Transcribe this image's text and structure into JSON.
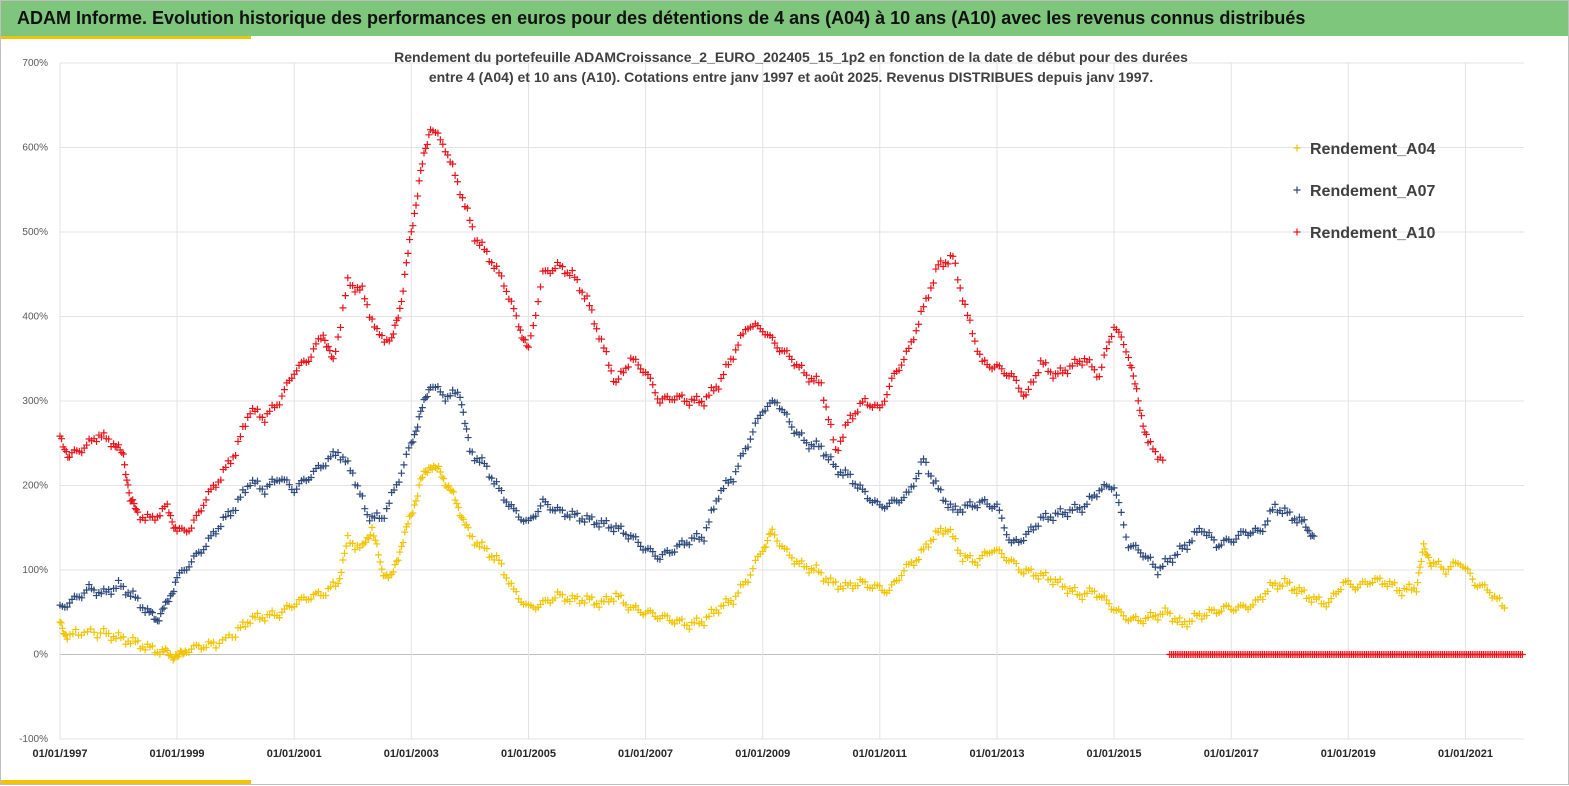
{
  "header": {
    "title": "ADAM Informe. Evolution historique des performances en euros pour des détentions de 4 ans (A04) à 10 ans (A10) avec les revenus connus distribués"
  },
  "chart_data": {
    "type": "scatter",
    "subtitle_lines": [
      "Rendement du portefeuille ADAMCroissance_2_EURO_202405_15_1p2  en fonction de la date de début pour des durées",
      "entre 4 (A04) et 10 ans (A10). Cotations entre janv 1997 et août 2025. Revenus DISTRIBUES depuis janv 1997."
    ],
    "xlabel": "",
    "ylabel": "",
    "x_domain": [
      "1997-01-01",
      "2022-01-01"
    ],
    "x_ticks": [
      "01/01/1997",
      "01/01/1999",
      "01/01/2001",
      "01/01/2003",
      "01/01/2005",
      "01/01/2007",
      "01/01/2009",
      "01/01/2011",
      "01/01/2013",
      "01/01/2015",
      "01/01/2017",
      "01/01/2019",
      "01/01/2021"
    ],
    "ylim": [
      -100,
      700
    ],
    "y_ticks": [
      "-100%",
      "0%",
      "100%",
      "200%",
      "300%",
      "400%",
      "500%",
      "600%",
      "700%"
    ],
    "grid": true,
    "legend_position": "top-right",
    "marker": "+",
    "series": [
      {
        "name": "Rendement_A04",
        "color": "#f2c300",
        "points": [
          [
            "1997-01-01",
            35
          ],
          [
            "1997-02-15",
            22
          ],
          [
            "1997-06-01",
            27
          ],
          [
            "1997-10-01",
            25
          ],
          [
            "1998-01-01",
            20
          ],
          [
            "1998-04-01",
            15
          ],
          [
            "1998-07-01",
            8
          ],
          [
            "1998-10-01",
            3
          ],
          [
            "1998-12-01",
            0
          ],
          [
            "1999-01-15",
            -3
          ],
          [
            "1999-03-01",
            5
          ],
          [
            "1999-06-01",
            10
          ],
          [
            "1999-09-01",
            12
          ],
          [
            "2000-01-01",
            25
          ],
          [
            "2000-04-01",
            42
          ],
          [
            "2000-07-01",
            45
          ],
          [
            "2000-10-01",
            48
          ],
          [
            "2001-01-01",
            60
          ],
          [
            "2001-04-01",
            68
          ],
          [
            "2001-07-01",
            72
          ],
          [
            "2001-10-01",
            85
          ],
          [
            "2001-12-01",
            135
          ],
          [
            "2002-03-01",
            125
          ],
          [
            "2002-05-01",
            150
          ],
          [
            "2002-07-01",
            100
          ],
          [
            "2002-09-01",
            90
          ],
          [
            "2002-11-01",
            130
          ],
          [
            "2003-01-01",
            165
          ],
          [
            "2003-03-01",
            205
          ],
          [
            "2003-05-01",
            225
          ],
          [
            "2003-07-01",
            215
          ],
          [
            "2003-09-01",
            195
          ],
          [
            "2003-11-01",
            170
          ],
          [
            "2004-01-01",
            140
          ],
          [
            "2004-04-01",
            125
          ],
          [
            "2004-07-01",
            110
          ],
          [
            "2004-10-01",
            75
          ],
          [
            "2005-01-01",
            55
          ],
          [
            "2005-04-01",
            60
          ],
          [
            "2005-07-01",
            70
          ],
          [
            "2005-10-01",
            65
          ],
          [
            "2006-01-01",
            65
          ],
          [
            "2006-04-01",
            60
          ],
          [
            "2006-07-01",
            70
          ],
          [
            "2006-10-01",
            55
          ],
          [
            "2007-01-01",
            50
          ],
          [
            "2007-04-01",
            45
          ],
          [
            "2007-07-01",
            40
          ],
          [
            "2007-10-01",
            35
          ],
          [
            "2008-01-01",
            40
          ],
          [
            "2008-04-01",
            55
          ],
          [
            "2008-07-01",
            65
          ],
          [
            "2008-10-01",
            90
          ],
          [
            "2009-01-01",
            125
          ],
          [
            "2009-03-01",
            145
          ],
          [
            "2009-06-01",
            120
          ],
          [
            "2009-09-01",
            105
          ],
          [
            "2009-12-01",
            100
          ],
          [
            "2010-03-01",
            85
          ],
          [
            "2010-06-01",
            80
          ],
          [
            "2010-09-01",
            85
          ],
          [
            "2010-12-01",
            80
          ],
          [
            "2011-03-01",
            75
          ],
          [
            "2011-06-01",
            100
          ],
          [
            "2011-09-01",
            115
          ],
          [
            "2011-12-01",
            140
          ],
          [
            "2012-03-01",
            150
          ],
          [
            "2012-06-01",
            115
          ],
          [
            "2012-09-01",
            110
          ],
          [
            "2012-12-01",
            125
          ],
          [
            "2013-03-01",
            115
          ],
          [
            "2013-06-01",
            100
          ],
          [
            "2013-09-01",
            95
          ],
          [
            "2013-12-01",
            90
          ],
          [
            "2014-03-01",
            80
          ],
          [
            "2014-06-01",
            70
          ],
          [
            "2014-09-01",
            75
          ],
          [
            "2014-12-01",
            60
          ],
          [
            "2015-03-01",
            45
          ],
          [
            "2015-06-01",
            40
          ],
          [
            "2015-09-01",
            45
          ],
          [
            "2015-12-01",
            50
          ],
          [
            "2016-03-01",
            35
          ],
          [
            "2016-06-01",
            45
          ],
          [
            "2016-09-01",
            50
          ],
          [
            "2016-12-01",
            55
          ],
          [
            "2017-03-01",
            55
          ],
          [
            "2017-06-01",
            60
          ],
          [
            "2017-09-01",
            80
          ],
          [
            "2017-12-01",
            85
          ],
          [
            "2018-03-01",
            75
          ],
          [
            "2018-06-01",
            65
          ],
          [
            "2018-09-01",
            60
          ],
          [
            "2018-12-01",
            85
          ],
          [
            "2019-03-01",
            80
          ],
          [
            "2019-06-01",
            88
          ],
          [
            "2019-09-01",
            85
          ],
          [
            "2019-12-01",
            75
          ],
          [
            "2020-03-01",
            80
          ],
          [
            "2020-04-15",
            125
          ],
          [
            "2020-06-01",
            110
          ],
          [
            "2020-09-01",
            100
          ],
          [
            "2020-12-01",
            110
          ],
          [
            "2021-03-01",
            85
          ],
          [
            "2021-06-01",
            75
          ],
          [
            "2021-09-01",
            55
          ]
        ]
      },
      {
        "name": "Rendement_A07",
        "color": "#2e4a7d",
        "points": [
          [
            "1997-01-01",
            55
          ],
          [
            "1997-04-01",
            65
          ],
          [
            "1997-07-01",
            78
          ],
          [
            "1997-10-01",
            72
          ],
          [
            "1998-01-01",
            82
          ],
          [
            "1998-04-01",
            70
          ],
          [
            "1998-07-01",
            50
          ],
          [
            "1998-09-01",
            42
          ],
          [
            "1998-11-01",
            60
          ],
          [
            "1999-01-01",
            90
          ],
          [
            "1999-04-01",
            110
          ],
          [
            "1999-07-01",
            130
          ],
          [
            "1999-10-01",
            155
          ],
          [
            "2000-01-01",
            175
          ],
          [
            "2000-04-01",
            205
          ],
          [
            "2000-07-01",
            195
          ],
          [
            "2000-10-01",
            210
          ],
          [
            "2001-01-01",
            195
          ],
          [
            "2001-04-01",
            210
          ],
          [
            "2001-07-01",
            225
          ],
          [
            "2001-10-01",
            240
          ],
          [
            "2002-01-01",
            215
          ],
          [
            "2002-04-01",
            165
          ],
          [
            "2002-07-01",
            160
          ],
          [
            "2002-10-01",
            200
          ],
          [
            "2003-01-01",
            250
          ],
          [
            "2003-03-01",
            285
          ],
          [
            "2003-05-01",
            320
          ],
          [
            "2003-08-01",
            305
          ],
          [
            "2003-11-01",
            310
          ],
          [
            "2004-01-01",
            240
          ],
          [
            "2004-04-01",
            225
          ],
          [
            "2004-07-01",
            195
          ],
          [
            "2004-10-01",
            170
          ],
          [
            "2005-01-01",
            155
          ],
          [
            "2005-04-01",
            180
          ],
          [
            "2005-07-01",
            170
          ],
          [
            "2005-10-01",
            165
          ],
          [
            "2006-01-01",
            160
          ],
          [
            "2006-04-01",
            155
          ],
          [
            "2006-07-01",
            150
          ],
          [
            "2006-10-01",
            140
          ],
          [
            "2007-01-01",
            125
          ],
          [
            "2007-04-01",
            115
          ],
          [
            "2007-07-01",
            125
          ],
          [
            "2007-10-01",
            135
          ],
          [
            "2008-01-01",
            140
          ],
          [
            "2008-04-01",
            190
          ],
          [
            "2008-07-01",
            210
          ],
          [
            "2008-10-01",
            250
          ],
          [
            "2009-01-01",
            290
          ],
          [
            "2009-04-01",
            300
          ],
          [
            "2009-07-01",
            270
          ],
          [
            "2009-10-01",
            250
          ],
          [
            "2010-01-01",
            245
          ],
          [
            "2010-04-01",
            220
          ],
          [
            "2010-07-01",
            210
          ],
          [
            "2010-10-01",
            190
          ],
          [
            "2011-01-01",
            175
          ],
          [
            "2011-04-01",
            180
          ],
          [
            "2011-07-01",
            190
          ],
          [
            "2011-10-01",
            230
          ],
          [
            "2012-01-01",
            195
          ],
          [
            "2012-04-01",
            170
          ],
          [
            "2012-07-01",
            175
          ],
          [
            "2012-10-01",
            180
          ],
          [
            "2013-01-01",
            175
          ],
          [
            "2013-04-01",
            130
          ],
          [
            "2013-07-01",
            140
          ],
          [
            "2013-10-01",
            160
          ],
          [
            "2014-01-01",
            165
          ],
          [
            "2014-04-01",
            170
          ],
          [
            "2014-07-01",
            175
          ],
          [
            "2014-10-01",
            195
          ],
          [
            "2015-01-01",
            200
          ],
          [
            "2015-04-01",
            130
          ],
          [
            "2015-07-01",
            120
          ],
          [
            "2015-10-01",
            100
          ],
          [
            "2016-01-01",
            115
          ],
          [
            "2016-04-01",
            130
          ],
          [
            "2016-07-01",
            150
          ],
          [
            "2016-10-01",
            130
          ],
          [
            "2017-01-01",
            135
          ],
          [
            "2017-04-01",
            145
          ],
          [
            "2017-07-01",
            145
          ],
          [
            "2017-10-01",
            175
          ],
          [
            "2018-01-01",
            165
          ],
          [
            "2018-04-01",
            155
          ],
          [
            "2018-06-01",
            140
          ]
        ]
      },
      {
        "name": "Rendement_A10",
        "color": "#e8141b",
        "points": [
          [
            "1997-01-01",
            255
          ],
          [
            "1997-03-01",
            235
          ],
          [
            "1997-06-01",
            245
          ],
          [
            "1997-09-01",
            260
          ],
          [
            "1997-12-01",
            250
          ],
          [
            "1998-02-01",
            235
          ],
          [
            "1998-03-15",
            185
          ],
          [
            "1998-05-01",
            165
          ],
          [
            "1998-08-01",
            160
          ],
          [
            "1998-11-01",
            175
          ],
          [
            "1999-01-01",
            145
          ],
          [
            "1999-04-01",
            150
          ],
          [
            "1999-07-01",
            185
          ],
          [
            "1999-10-01",
            210
          ],
          [
            "2000-01-01",
            240
          ],
          [
            "2000-04-01",
            290
          ],
          [
            "2000-07-01",
            280
          ],
          [
            "2000-10-01",
            300
          ],
          [
            "2001-01-01",
            335
          ],
          [
            "2001-04-01",
            350
          ],
          [
            "2001-07-01",
            380
          ],
          [
            "2001-09-01",
            345
          ],
          [
            "2001-12-01",
            440
          ],
          [
            "2002-03-01",
            430
          ],
          [
            "2002-06-01",
            380
          ],
          [
            "2002-09-01",
            370
          ],
          [
            "2002-11-01",
            420
          ],
          [
            "2003-01-01",
            500
          ],
          [
            "2003-03-01",
            570
          ],
          [
            "2003-05-01",
            625
          ],
          [
            "2003-08-01",
            600
          ],
          [
            "2003-11-01",
            550
          ],
          [
            "2004-02-01",
            495
          ],
          [
            "2004-05-01",
            470
          ],
          [
            "2004-08-01",
            440
          ],
          [
            "2004-11-01",
            390
          ],
          [
            "2005-01-01",
            360
          ],
          [
            "2005-04-01",
            450
          ],
          [
            "2005-07-01",
            460
          ],
          [
            "2005-10-01",
            450
          ],
          [
            "2006-01-01",
            420
          ],
          [
            "2006-04-01",
            370
          ],
          [
            "2006-07-01",
            320
          ],
          [
            "2006-10-01",
            350
          ],
          [
            "2007-01-01",
            335
          ],
          [
            "2007-04-01",
            300
          ],
          [
            "2007-07-01",
            305
          ],
          [
            "2007-10-01",
            300
          ],
          [
            "2008-01-01",
            300
          ],
          [
            "2008-04-01",
            320
          ],
          [
            "2008-07-01",
            355
          ],
          [
            "2008-10-01",
            390
          ],
          [
            "2009-01-01",
            385
          ],
          [
            "2009-04-01",
            365
          ],
          [
            "2009-07-01",
            350
          ],
          [
            "2009-10-01",
            330
          ],
          [
            "2010-01-01",
            320
          ],
          [
            "2010-04-01",
            240
          ],
          [
            "2010-07-01",
            280
          ],
          [
            "2010-10-01",
            300
          ],
          [
            "2011-01-01",
            290
          ],
          [
            "2011-04-01",
            330
          ],
          [
            "2011-07-01",
            360
          ],
          [
            "2011-10-01",
            410
          ],
          [
            "2012-01-01",
            460
          ],
          [
            "2012-04-01",
            470
          ],
          [
            "2012-07-01",
            400
          ],
          [
            "2012-10-01",
            345
          ],
          [
            "2013-01-01",
            340
          ],
          [
            "2013-04-01",
            330
          ],
          [
            "2013-07-01",
            305
          ],
          [
            "2013-10-01",
            345
          ],
          [
            "2014-01-01",
            330
          ],
          [
            "2014-04-01",
            340
          ],
          [
            "2014-07-01",
            350
          ],
          [
            "2014-10-01",
            330
          ],
          [
            "2015-01-01",
            390
          ],
          [
            "2015-04-01",
            355
          ],
          [
            "2015-06-01",
            300
          ],
          [
            "2015-08-01",
            250
          ],
          [
            "2015-11-01",
            230
          ]
        ],
        "zero_range": [
          "2016-01-01",
          "2022-01-01"
        ]
      }
    ]
  }
}
